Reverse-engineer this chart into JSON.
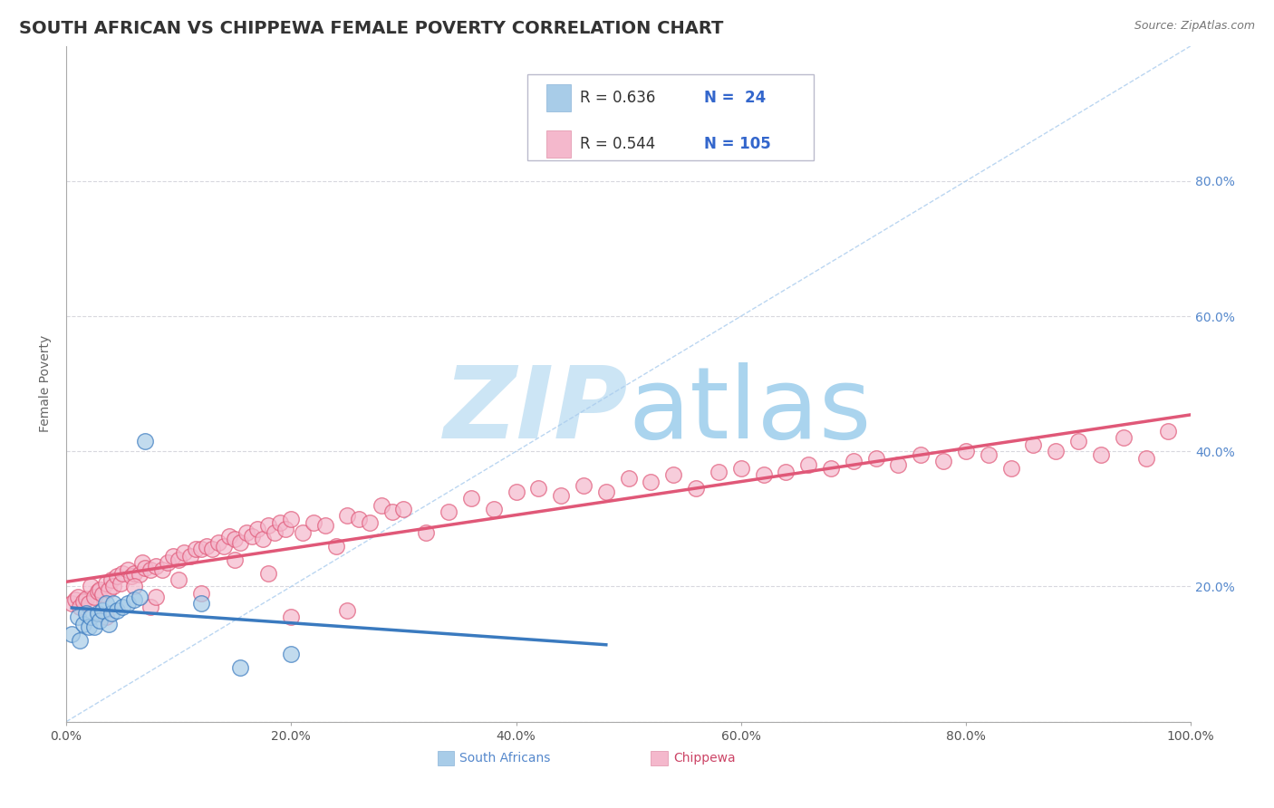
{
  "title": "SOUTH AFRICAN VS CHIPPEWA FEMALE POVERTY CORRELATION CHART",
  "source": "Source: ZipAtlas.com",
  "ylabel": "Female Poverty",
  "right_yticks": [
    0.0,
    0.2,
    0.4,
    0.6,
    0.8
  ],
  "right_yticklabels": [
    "",
    "20.0%",
    "40.0%",
    "60.0%",
    "80.0%"
  ],
  "xticks": [
    0.0,
    0.2,
    0.4,
    0.6,
    0.8,
    1.0
  ],
  "xticklabels": [
    "0.0%",
    "20.0%",
    "40.0%",
    "60.0%",
    "80.0%",
    "100.0%"
  ],
  "legend_r1": "R = 0.636",
  "legend_n1": "N =  24",
  "legend_r2": "R = 0.544",
  "legend_n2": "N = 105",
  "color_sa": "#a8cce8",
  "color_ch": "#f4b8cc",
  "color_sa_line": "#3a7abf",
  "color_ch_line": "#e05878",
  "background_color": "#ffffff",
  "grid_color": "#c8c8d0",
  "watermark_color": "#cce5f5",
  "title_fontsize": 14,
  "axis_label_fontsize": 10,
  "tick_fontsize": 10,
  "legend_fontsize": 12,
  "sa_x": [
    0.005,
    0.01,
    0.012,
    0.015,
    0.018,
    0.02,
    0.022,
    0.025,
    0.028,
    0.03,
    0.032,
    0.035,
    0.038,
    0.04,
    0.042,
    0.045,
    0.05,
    0.055,
    0.06,
    0.065,
    0.07,
    0.12,
    0.155,
    0.2
  ],
  "sa_y": [
    0.13,
    0.155,
    0.12,
    0.145,
    0.16,
    0.14,
    0.155,
    0.14,
    0.16,
    0.15,
    0.165,
    0.175,
    0.145,
    0.16,
    0.175,
    0.165,
    0.17,
    0.175,
    0.18,
    0.185,
    0.415,
    0.175,
    0.08,
    0.1
  ],
  "ch_x": [
    0.005,
    0.008,
    0.01,
    0.012,
    0.015,
    0.018,
    0.02,
    0.022,
    0.025,
    0.028,
    0.03,
    0.032,
    0.035,
    0.038,
    0.04,
    0.042,
    0.045,
    0.048,
    0.05,
    0.055,
    0.058,
    0.06,
    0.065,
    0.068,
    0.07,
    0.075,
    0.08,
    0.085,
    0.09,
    0.095,
    0.1,
    0.105,
    0.11,
    0.115,
    0.12,
    0.125,
    0.13,
    0.135,
    0.14,
    0.145,
    0.15,
    0.155,
    0.16,
    0.165,
    0.17,
    0.175,
    0.18,
    0.185,
    0.19,
    0.195,
    0.2,
    0.21,
    0.22,
    0.23,
    0.24,
    0.25,
    0.26,
    0.27,
    0.28,
    0.29,
    0.3,
    0.32,
    0.34,
    0.36,
    0.38,
    0.4,
    0.42,
    0.44,
    0.46,
    0.48,
    0.5,
    0.52,
    0.54,
    0.56,
    0.58,
    0.6,
    0.62,
    0.64,
    0.66,
    0.68,
    0.7,
    0.72,
    0.74,
    0.76,
    0.78,
    0.8,
    0.82,
    0.84,
    0.86,
    0.88,
    0.9,
    0.92,
    0.94,
    0.96,
    0.98,
    0.035,
    0.075,
    0.12,
    0.2,
    0.25,
    0.15,
    0.1,
    0.18,
    0.08,
    0.06
  ],
  "ch_y": [
    0.175,
    0.18,
    0.185,
    0.17,
    0.178,
    0.182,
    0.175,
    0.2,
    0.185,
    0.192,
    0.195,
    0.188,
    0.205,
    0.195,
    0.21,
    0.2,
    0.215,
    0.205,
    0.22,
    0.225,
    0.215,
    0.22,
    0.218,
    0.235,
    0.228,
    0.225,
    0.23,
    0.225,
    0.235,
    0.245,
    0.24,
    0.25,
    0.245,
    0.255,
    0.255,
    0.26,
    0.255,
    0.265,
    0.26,
    0.275,
    0.27,
    0.265,
    0.28,
    0.275,
    0.285,
    0.27,
    0.29,
    0.28,
    0.295,
    0.285,
    0.3,
    0.28,
    0.295,
    0.29,
    0.26,
    0.305,
    0.3,
    0.295,
    0.32,
    0.31,
    0.315,
    0.28,
    0.31,
    0.33,
    0.315,
    0.34,
    0.345,
    0.335,
    0.35,
    0.34,
    0.36,
    0.355,
    0.365,
    0.345,
    0.37,
    0.375,
    0.365,
    0.37,
    0.38,
    0.375,
    0.385,
    0.39,
    0.38,
    0.395,
    0.385,
    0.4,
    0.395,
    0.375,
    0.41,
    0.4,
    0.415,
    0.395,
    0.42,
    0.39,
    0.43,
    0.155,
    0.17,
    0.19,
    0.155,
    0.165,
    0.24,
    0.21,
    0.22,
    0.185,
    0.2
  ]
}
